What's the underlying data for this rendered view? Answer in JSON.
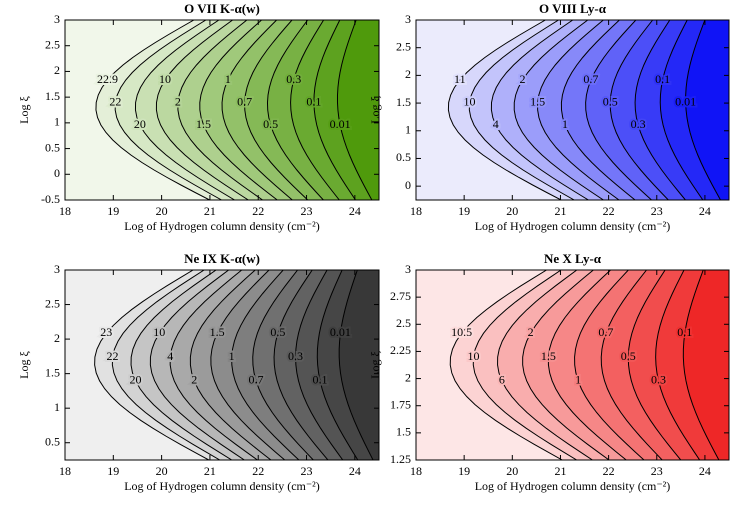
{
  "chart_data": [
    {
      "type": "contour",
      "title": "O VII  K-α(w)",
      "xlabel": "Log of Hydrogen column density (cm⁻²)",
      "ylabel": "Log ξ",
      "xlim": [
        18,
        24.5
      ],
      "xticks": [
        18,
        19,
        20,
        21,
        22,
        23,
        24
      ],
      "ylim": [
        -0.5,
        3
      ],
      "yticks": [
        -0.5,
        0,
        0.5,
        1,
        1.5,
        2,
        2.5,
        3
      ],
      "levels": [
        22.9,
        22,
        20,
        10,
        2,
        1.5,
        1,
        0.7,
        0.5,
        0.3,
        0.1,
        0.01
      ],
      "color_range": [
        "#f1f7ea",
        "#4f9a0c"
      ]
    },
    {
      "type": "contour",
      "title": "O VIII  Ly-α",
      "xlabel": "Log of Hydrogen column density (cm⁻²)",
      "ylabel": "Log ξ",
      "xlim": [
        18,
        24.5
      ],
      "xticks": [
        18,
        19,
        20,
        21,
        22,
        23,
        24
      ],
      "ylim": [
        -0.25,
        3
      ],
      "yticks": [
        0,
        0.5,
        1,
        1.5,
        2,
        2.5,
        3
      ],
      "levels": [
        11,
        10,
        4,
        2,
        1.5,
        1,
        0.7,
        0.5,
        0.3,
        0.1,
        0.01
      ],
      "color_range": [
        "#ebebfc",
        "#1014f6"
      ]
    },
    {
      "type": "contour",
      "title": "Ne IX  K-α(w)",
      "xlabel": "Log of Hydrogen column density (cm⁻²)",
      "ylabel": "Log ξ",
      "xlim": [
        18,
        24.5
      ],
      "xticks": [
        18,
        19,
        20,
        21,
        22,
        23,
        24
      ],
      "ylim": [
        0.25,
        3
      ],
      "yticks": [
        0.5,
        1,
        1.5,
        2,
        2.5,
        3
      ],
      "levels": [
        23,
        22,
        20,
        10,
        4,
        2,
        1.5,
        1,
        0.7,
        0.5,
        0.3,
        0.1,
        0.01
      ],
      "color_range": [
        "#efefef",
        "#383838"
      ]
    },
    {
      "type": "contour",
      "title": "Ne X Ly-α",
      "xlabel": "Log of Hydrogen column density (cm⁻²)",
      "ylabel": "Log ξ",
      "xlim": [
        18,
        24.5
      ],
      "xticks": [
        18,
        19,
        20,
        21,
        22,
        23,
        24
      ],
      "ylim": [
        1.25,
        3
      ],
      "yticks": [
        1.25,
        1.5,
        1.75,
        2,
        2.25,
        2.5,
        2.75,
        3
      ],
      "levels": [
        10.5,
        10,
        6,
        2,
        1.5,
        1,
        0.7,
        0.5,
        0.3,
        0.1
      ],
      "color_range": [
        "#fde6e6",
        "#ee2727"
      ]
    }
  ]
}
